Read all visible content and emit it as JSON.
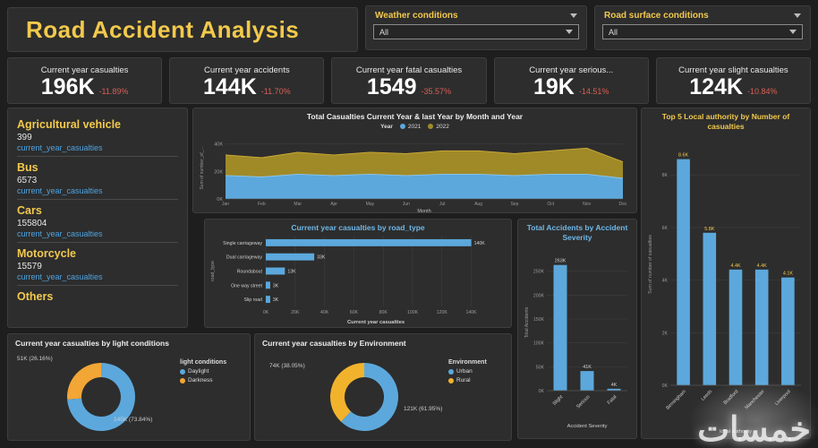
{
  "header": {
    "title": "Road Accident Analysis",
    "filters": [
      {
        "label": "Weather conditions",
        "value": "All"
      },
      {
        "label": "Road surface conditions",
        "value": "All"
      }
    ]
  },
  "kpis": [
    {
      "label": "Current year casualties",
      "value": "196K",
      "delta": "-11.89%"
    },
    {
      "label": "Current year accidents",
      "value": "144K",
      "delta": "-11.70%"
    },
    {
      "label": "Current year fatal casualties",
      "value": "1549",
      "delta": "-35.57%"
    },
    {
      "label": "Current year serious...",
      "value": "19K",
      "delta": "-14.51%"
    },
    {
      "label": "Current year slight casualties",
      "value": "124K",
      "delta": "-10.84%"
    }
  ],
  "vehicles": {
    "items": [
      {
        "name": "Agricultural vehicle",
        "value": "399",
        "caption": "current_year_casualties"
      },
      {
        "name": "Bus",
        "value": "6573",
        "caption": "current_year_casualties"
      },
      {
        "name": "Cars",
        "value": "155804",
        "caption": "current_year_casualties"
      },
      {
        "name": "Motorcycle",
        "value": "15579",
        "caption": "current_year_casualties"
      },
      {
        "name": "Others",
        "value": "",
        "caption": ""
      }
    ]
  },
  "colors": {
    "accent_yellow": "#F2C94C",
    "bar_blue": "#5CA8DC",
    "area_olive": "#A08A28",
    "delta_red": "#D95F55",
    "caption_blue": "#4FA3E0"
  },
  "watermark": "خمسات",
  "chart_data": [
    {
      "id": "monthly_casualties_area",
      "type": "area",
      "stacked": true,
      "title": "Total Casualties Current Year & last Year by Month and Year",
      "legend_title": "Year",
      "x": [
        "Jan",
        "Feb",
        "Mar",
        "Apr",
        "May",
        "Jun",
        "Jul",
        "Aug",
        "Sep",
        "Oct",
        "Nov",
        "Dec"
      ],
      "series": [
        {
          "name": "2021",
          "color": "#5CA8DC",
          "values": [
            17,
            16,
            18,
            17,
            18,
            17,
            18,
            18,
            17,
            18,
            18,
            15
          ]
        },
        {
          "name": "2022",
          "color": "#A08A28",
          "values": [
            15,
            14,
            16,
            15,
            16,
            16,
            17,
            17,
            16,
            17,
            19,
            12
          ]
        }
      ],
      "xlabel": "Month",
      "ylabel": "Sum of number_of_...",
      "ymax": 45,
      "ytick_values": [
        0,
        20,
        40
      ],
      "yticks": [
        "0K",
        "20K",
        "40K"
      ]
    },
    {
      "id": "casualties_by_road_type",
      "type": "bar-horizontal",
      "title": "Current year casualties by road_type",
      "categories": [
        "Single carriageway",
        "Dual carriageway",
        "Roundabout",
        "One way street",
        "Slip road"
      ],
      "values": [
        140,
        33,
        13,
        3,
        3
      ],
      "labels": [
        "140K",
        "33K",
        "13K",
        "3K",
        "3K"
      ],
      "xmax": 150,
      "xtick_values": [
        0,
        20,
        40,
        60,
        80,
        100,
        120,
        140
      ],
      "xticks": [
        "0K",
        "20K",
        "40K",
        "60K",
        "80K",
        "100K",
        "120K",
        "140K"
      ],
      "xlabel": "Current year casualties",
      "ylabel": "road_type",
      "bar_color": "#5CA8DC"
    },
    {
      "id": "accidents_by_severity",
      "type": "bar",
      "title": "Total Accidents by Accident Severity",
      "categories": [
        "Slight",
        "Serious",
        "Fatal"
      ],
      "values": [
        263,
        41,
        4
      ],
      "labels": [
        "263K",
        "41K",
        "4K"
      ],
      "ymax": 285,
      "ytick_values": [
        0,
        50,
        100,
        150,
        200,
        250
      ],
      "yticks": [
        "0K",
        "50K",
        "100K",
        "150K",
        "200K",
        "250K"
      ],
      "xlabel": "Accident Severity",
      "ylabel": "Total Accidents",
      "bar_color": "#5CA8DC",
      "label_color": "#cfcfcf"
    },
    {
      "id": "top5_local_authority",
      "type": "bar",
      "title": "Top 5 Local authority by Number of casualties",
      "categories": [
        "Birmingham",
        "Leeds",
        "Bradford",
        "Manchester",
        "Liverpool"
      ],
      "values": [
        8.6,
        5.8,
        4.4,
        4.4,
        4.1
      ],
      "labels": [
        "8.6K",
        "5.8K",
        "4.4K",
        "4.4K",
        "4.1K"
      ],
      "ymax": 9.2,
      "ytick_values": [
        0,
        2,
        4,
        6,
        8
      ],
      "yticks": [
        "0K",
        "2K",
        "4K",
        "6K",
        "8K"
      ],
      "xlabel": "local authority",
      "ylabel": "Sum of number of casualties",
      "bar_color": "#5CA8DC",
      "label_color": "#F2C94C"
    },
    {
      "id": "casualties_by_light_conditions",
      "type": "pie",
      "title": "Current year casualties by light conditions",
      "legend_title": "light conditions",
      "slices": [
        {
          "name": "Daylight",
          "value": 73.84,
          "label": "145K (73.84%)",
          "color": "#5CA8DC"
        },
        {
          "name": "Darkness",
          "value": 26.16,
          "label": "51K (26.16%)",
          "color": "#F2A636"
        }
      ]
    },
    {
      "id": "casualties_by_environment",
      "type": "pie",
      "title": "Current year casualties by Environment",
      "legend_title": "Environment",
      "slices": [
        {
          "name": "Urban",
          "value": 61.95,
          "label": "121K (61.95%)",
          "color": "#5CA8DC"
        },
        {
          "name": "Rural",
          "value": 38.05,
          "label": "74K (38.05%)",
          "color": "#F2B32C"
        }
      ]
    }
  ]
}
